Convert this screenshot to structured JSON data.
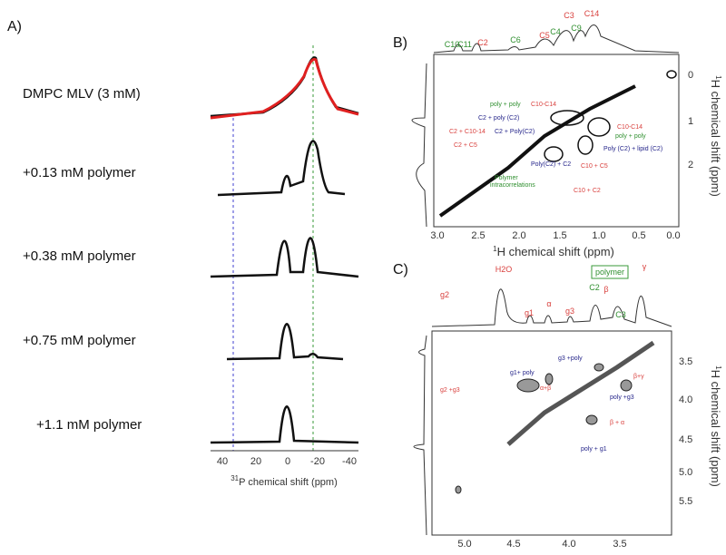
{
  "panel_a": {
    "label": "A)",
    "samples": [
      "DMPC MLV (3 mM)",
      "+0.13 mM polymer",
      "+0.38 mM polymer",
      "+0.75 mM polymer",
      "+1.1 mM polymer"
    ],
    "xticks": [
      "40",
      "20",
      "0",
      "-20",
      "-40"
    ],
    "axis_label": {
      "sup": "31",
      "text": "P chemical shift (ppm)"
    }
  },
  "panel_b": {
    "label": "B)",
    "top_labels": [
      "C10",
      "C11",
      "C2",
      "C6",
      "C5",
      "C4",
      "C3",
      "C9",
      "C14"
    ],
    "annotations": [
      "poly + poly",
      "C10-C14",
      "C2 + poly (C2)",
      "C2 + C10-14",
      "C2 + Poly(C2)",
      "C2 + C5",
      "Poly(C2) + C2",
      "Polymer",
      "intracorrelations",
      "C10-C14",
      "poly + poly",
      "Poly (C2) + lipid (C2)",
      "C10 + C5",
      "C10 + C2"
    ],
    "xticks": [
      "3.0",
      "2.5",
      "2.0",
      "1.5",
      "1.0",
      "0.5",
      "0.0"
    ],
    "yticks": [
      "0",
      "1",
      "2"
    ],
    "x_label": {
      "sup": "1",
      "text": "H chemical shift (ppm)"
    },
    "y_label": {
      "sup": "1",
      "text": "H chemical shift (ppm)"
    }
  },
  "panel_c": {
    "label": "C)",
    "top_labels": [
      "H2O",
      "g2",
      "g1",
      "α",
      "g3",
      "β",
      "C2",
      "C3",
      "γ",
      "polymer"
    ],
    "annotations": [
      "g3 +poly",
      "g1+ poly",
      "α+β",
      "poly +g3",
      "β + α",
      "poly + g1",
      "g2 +g3",
      "β+γ"
    ],
    "xticks": [
      "5.0",
      "4.5",
      "4.0",
      "3.5"
    ],
    "yticks": [
      "3.5",
      "4.0",
      "4.5",
      "5.0",
      "5.5"
    ],
    "x_label": {
      "sup": "1",
      "text": "H chemical shift (ppm)"
    },
    "y_label": {
      "sup": "1",
      "text": "H chemical shift (ppm)"
    }
  }
}
